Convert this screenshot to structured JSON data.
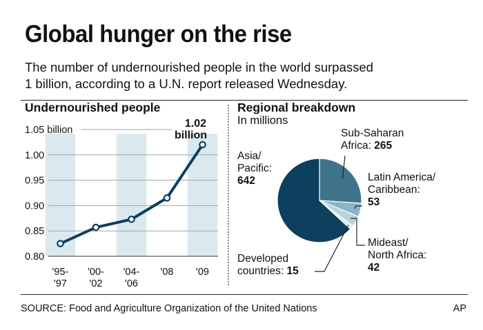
{
  "headline": "Global hunger on the rise",
  "dek": {
    "line1": "The number of undernourished people in the world surpassed",
    "line2": "1 billion, according to a U.N. report released Wednesday."
  },
  "source": "SOURCE: Food and Agriculture Organization of the United Nations",
  "credit": "AP",
  "colors": {
    "line": "#0d3f5e",
    "band": "#dbe9ef",
    "grid": "#9aa5ab",
    "pie_asia": "#0d3f5e",
    "pie_ssa": "#3e7489",
    "pie_latam": "#8bb5c4",
    "pie_mideast": "#b9d3dc",
    "pie_developed": "#dfecf0"
  },
  "chart_data": [
    {
      "type": "line",
      "title": "Undernourished people",
      "categories": [
        "'95-\n'97",
        "'00-\n'02",
        "'04-\n'06",
        "'08",
        "'09"
      ],
      "values": [
        0.825,
        0.857,
        0.873,
        0.915,
        1.02
      ],
      "ylim": [
        0.8,
        1.05
      ],
      "yticks": [
        {
          "value": 0.8,
          "label": "0.80"
        },
        {
          "value": 0.85,
          "label": "0.85"
        },
        {
          "value": 0.9,
          "label": "0.90"
        },
        {
          "value": 0.95,
          "label": "0.95"
        },
        {
          "value": 1.0,
          "label": "1.00"
        },
        {
          "value": 1.05,
          "label": "1.05 billion"
        }
      ],
      "grid": true,
      "annotation": {
        "line1": "1.02",
        "line2": "billion",
        "category_index": 4
      }
    },
    {
      "type": "pie",
      "title": "Regional breakdown",
      "subtitle": "In millions",
      "slices": [
        {
          "key": "ssa",
          "label1": "Sub-Saharan",
          "label2": "Africa:",
          "value": 265,
          "value_label": "265"
        },
        {
          "key": "latam",
          "label1": "Latin America/",
          "label2": "Caribbean:",
          "value": 53,
          "value_label": "53"
        },
        {
          "key": "mideast",
          "label1": "Mideast/",
          "label2": "North Africa:",
          "value": 42,
          "value_label": "42"
        },
        {
          "key": "developed",
          "label1": "Developed",
          "label2": "countries:",
          "value": 15,
          "value_label": "15"
        },
        {
          "key": "asia",
          "label1": "Asia/",
          "label2": "Pacific:",
          "value": 642,
          "value_label": "642"
        }
      ]
    }
  ]
}
